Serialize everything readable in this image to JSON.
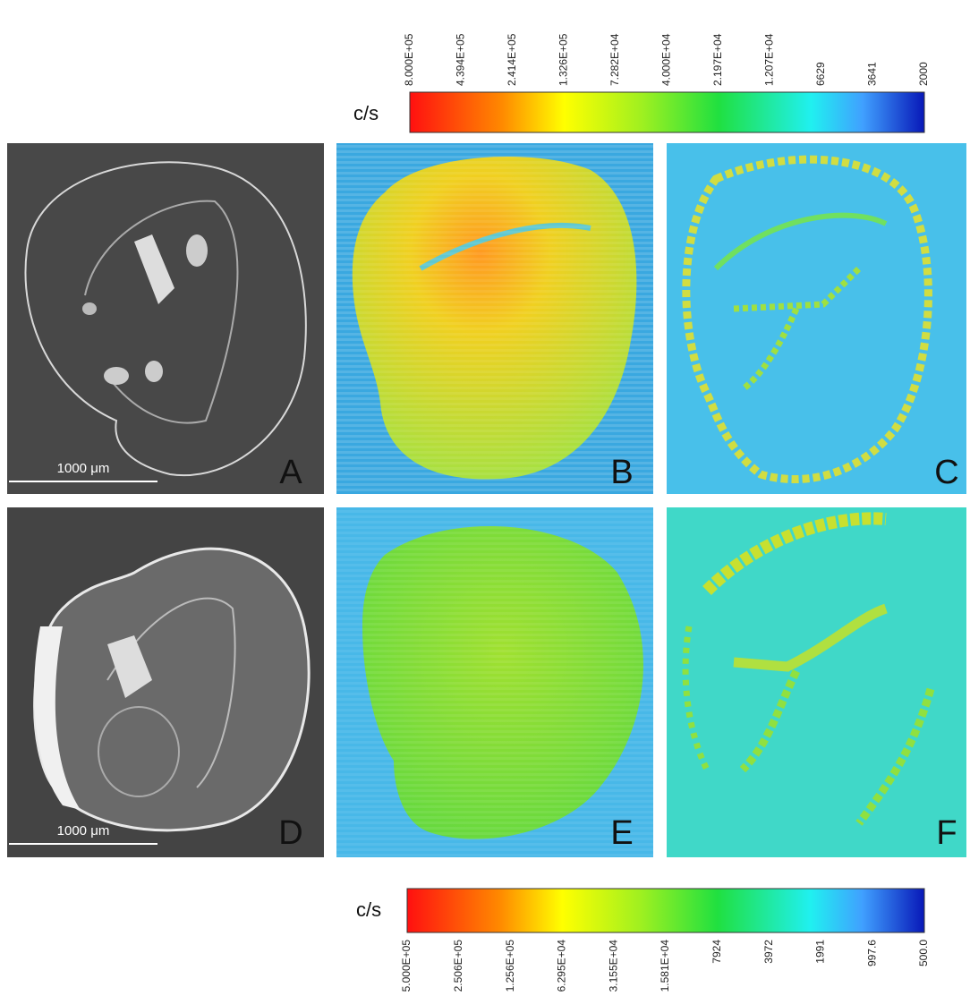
{
  "colorbars": [
    {
      "unit": "c/s",
      "ticks": [
        "8.000E+05",
        "4.394E+05",
        "2.414E+05",
        "1.326E+05",
        "7.282E+04",
        "4.000E+04",
        "2.197E+04",
        "1.207E+04",
        "6629",
        "3641",
        "2000"
      ]
    },
    {
      "unit": "c/s",
      "ticks": [
        "5.000E+05",
        "2.506E+05",
        "1.256E+05",
        "6.295E+04",
        "3.155E+04",
        "1.581E+04",
        "7924",
        "3972",
        "1991",
        "997.6",
        "500.0"
      ]
    }
  ],
  "panels": [
    {
      "label": "A",
      "scale_bar": "1000 μm"
    },
    {
      "label": "B"
    },
    {
      "label": "C"
    },
    {
      "label": "D",
      "scale_bar": "1000 μm"
    },
    {
      "label": "E"
    },
    {
      "label": "F"
    }
  ]
}
